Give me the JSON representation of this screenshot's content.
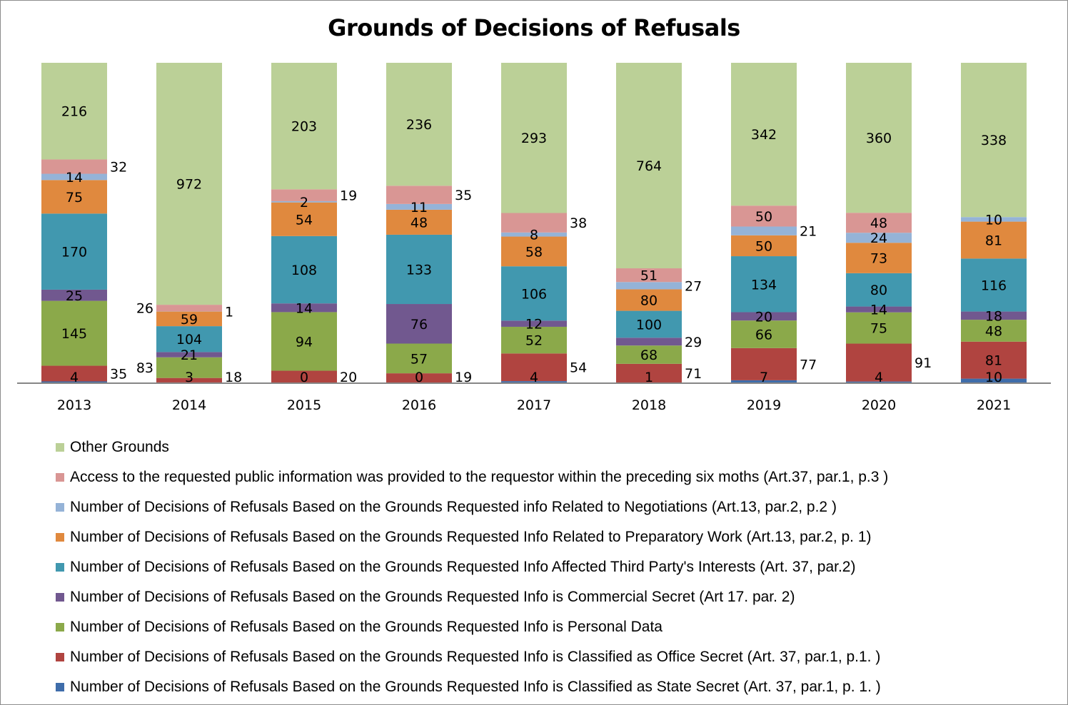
{
  "chart_data": {
    "type": "bar",
    "stacked": "percent",
    "title": "Grounds of Decisions of Refusals",
    "xlabel": "",
    "ylabel": "",
    "ylim": [
      0,
      100
    ],
    "grid": false,
    "legend_position": "bottom",
    "categories": [
      "2013",
      "2014",
      "2015",
      "2016",
      "2017",
      "2018",
      "2019",
      "2020",
      "2021"
    ],
    "series": [
      {
        "name": "Number of Decisions of Refusals Based on the Grounds  Requested Info is Classified as State Secret (Art. 37, par.1, p. 1. )",
        "color": "#3F6DAA",
        "values": [
          4,
          3,
          0,
          0,
          4,
          1,
          7,
          4,
          10
        ]
      },
      {
        "name": "Number of Decisions of Refusals Based on the Grounds  Requested Info is Classified as Office Secret (Art. 37, par.1, p.1. )",
        "color": "#B04440",
        "values": [
          35,
          18,
          20,
          19,
          54,
          71,
          77,
          91,
          81
        ]
      },
      {
        "name": "Number of Decisions of Refusals  Based on the Grounds  Requested Info is Personal Data",
        "color": "#8BA94A",
        "values": [
          145,
          83,
          94,
          57,
          52,
          68,
          66,
          75,
          48
        ]
      },
      {
        "name": "Number of Decisions of Refusals Based on the Grounds  Requested Info is Commercial Secret (Art 17. par. 2)",
        "color": "#71588F",
        "values": [
          25,
          21,
          14,
          76,
          12,
          29,
          20,
          14,
          18
        ]
      },
      {
        "name": "Number of Decisions of Refusals Based on the Grounds  Requested Info  Affected Third Party's Interests (Art. 37, par.2)",
        "color": "#4198AF",
        "values": [
          170,
          104,
          108,
          133,
          106,
          100,
          134,
          80,
          116
        ]
      },
      {
        "name": "Number of Decisions of Refusals Based on the Grounds  Requested Info Related to Preparatory Work (Art.13, par.2, p. 1)",
        "color": "#E0893E",
        "values": [
          75,
          59,
          54,
          48,
          58,
          80,
          50,
          73,
          81
        ]
      },
      {
        "name": "Number of Decisions of Refusals Based on the Grounds  Requested info Related to Negotiations (Art.13, par.2, p.2 )",
        "color": "#95B3D7",
        "values": [
          14,
          1,
          2,
          11,
          8,
          27,
          21,
          24,
          10
        ]
      },
      {
        "name": "Access to the requested public information was provided to the requestor within the preceding six moths (Art.37, par.1, p.3 )",
        "color": "#D99694",
        "values": [
          32,
          26,
          19,
          35,
          38,
          51,
          50,
          48,
          null
        ]
      },
      {
        "name": "Other Grounds",
        "color": "#BBD097",
        "values": [
          216,
          972,
          203,
          236,
          293,
          764,
          342,
          360,
          338
        ]
      }
    ]
  }
}
